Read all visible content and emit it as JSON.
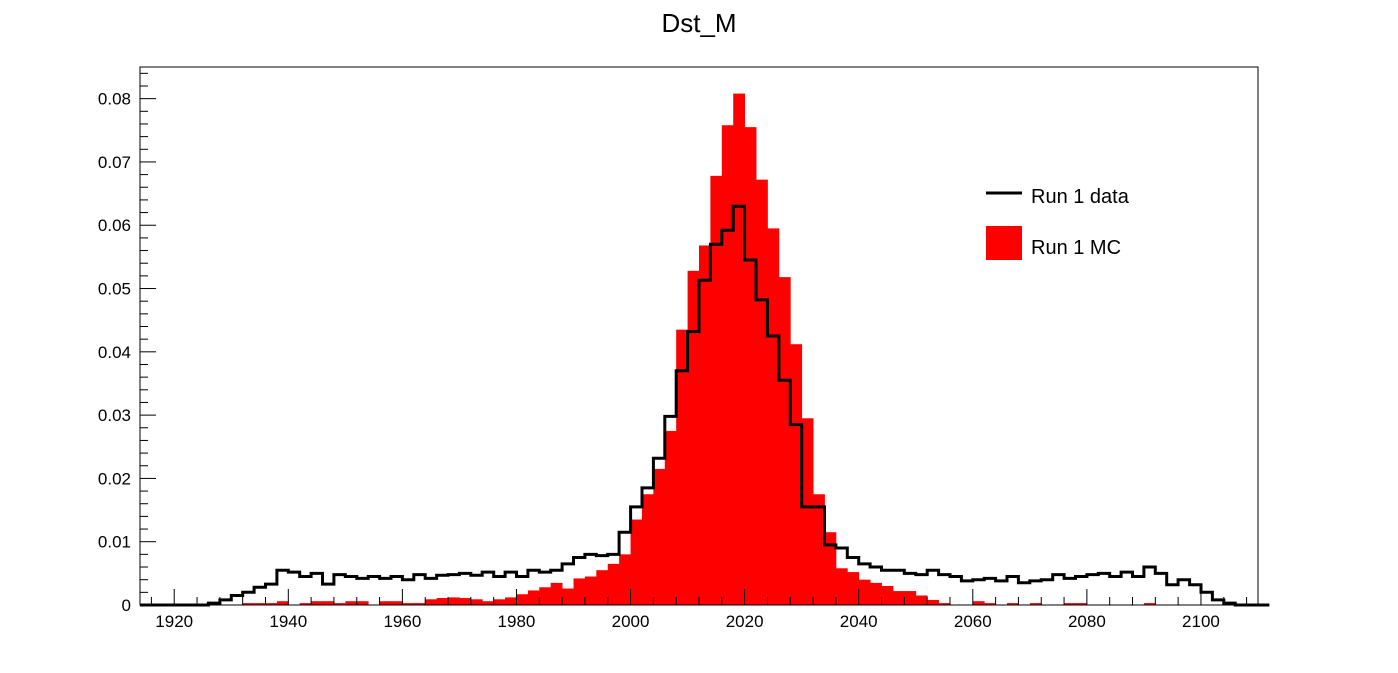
{
  "chart_data": {
    "type": "bar",
    "title": "Dst_M",
    "xlabel": "",
    "ylabel": "",
    "xlim": [
      1914,
      2110
    ],
    "ylim": [
      0,
      0.085
    ],
    "bin_width": 2,
    "first_bin_low": 1914,
    "x_ticks": [
      "1920",
      "1940",
      "1960",
      "1980",
      "2000",
      "2020",
      "2040",
      "2060",
      "2080",
      "2100"
    ],
    "y_ticks": [
      "0",
      "0.01",
      "0.02",
      "0.03",
      "0.04",
      "0.05",
      "0.06",
      "0.07",
      "0.08"
    ],
    "legend": {
      "placement": "top-right"
    },
    "series": [
      {
        "name": "Run 1 data",
        "style": "step-line",
        "color": "#000000",
        "values": [
          0,
          0,
          0,
          0,
          0,
          0,
          0.0003,
          0.0008,
          0.0015,
          0.002,
          0.0028,
          0.0033,
          0.0055,
          0.0052,
          0.0045,
          0.005,
          0.0033,
          0.0048,
          0.0045,
          0.0042,
          0.0045,
          0.0042,
          0.0045,
          0.004,
          0.0048,
          0.0042,
          0.0047,
          0.0048,
          0.005,
          0.0047,
          0.0052,
          0.0045,
          0.0052,
          0.0045,
          0.0055,
          0.0052,
          0.0055,
          0.0065,
          0.0075,
          0.008,
          0.0078,
          0.008,
          0.0115,
          0.0155,
          0.0185,
          0.0232,
          0.0298,
          0.037,
          0.0432,
          0.0513,
          0.057,
          0.0592,
          0.063,
          0.0545,
          0.0482,
          0.0425,
          0.0355,
          0.0285,
          0.0155,
          0.0155,
          0.0095,
          0.009,
          0.0075,
          0.0065,
          0.006,
          0.0055,
          0.0055,
          0.005,
          0.0048,
          0.0055,
          0.0048,
          0.0045,
          0.0038,
          0.004,
          0.0042,
          0.0038,
          0.0045,
          0.0035,
          0.0038,
          0.004,
          0.0048,
          0.0042,
          0.0045,
          0.0048,
          0.005,
          0.0045,
          0.0052,
          0.0045,
          0.006,
          0.005,
          0.0032,
          0.004,
          0.0032,
          0.002,
          0.0008,
          0.0003,
          0,
          0,
          0
        ]
      },
      {
        "name": "Run 1 MC",
        "style": "filled-bars",
        "color": "#ff0000",
        "values": [
          0,
          0,
          0,
          0,
          0,
          0,
          0,
          0,
          0,
          0.0003,
          0.0003,
          0.0003,
          0.0006,
          0.0,
          0.0003,
          0.0006,
          0.0006,
          0.0003,
          0.0006,
          0.0006,
          0.0,
          0.0006,
          0.0006,
          0.0003,
          0.0003,
          0.0009,
          0.0011,
          0.0012,
          0.0011,
          0.0009,
          0.0006,
          0.0009,
          0.0012,
          0.0017,
          0.0023,
          0.0028,
          0.0035,
          0.0026,
          0.0042,
          0.0045,
          0.0055,
          0.0065,
          0.008,
          0.0135,
          0.0175,
          0.0215,
          0.0275,
          0.0435,
          0.0528,
          0.0568,
          0.0678,
          0.0758,
          0.0808,
          0.0755,
          0.0672,
          0.0595,
          0.0518,
          0.0412,
          0.0295,
          0.0175,
          0.0115,
          0.0058,
          0.0052,
          0.004,
          0.0035,
          0.003,
          0.0022,
          0.0022,
          0.0015,
          0.0008,
          0.0003,
          0,
          0,
          0.0006,
          0.0003,
          0,
          0.0003,
          0,
          0.0003,
          0,
          0,
          0.0003,
          0.0003,
          0,
          0,
          0,
          0,
          0,
          0.0003,
          0,
          0,
          0,
          0,
          0,
          0,
          0,
          0,
          0,
          0
        ]
      }
    ]
  }
}
